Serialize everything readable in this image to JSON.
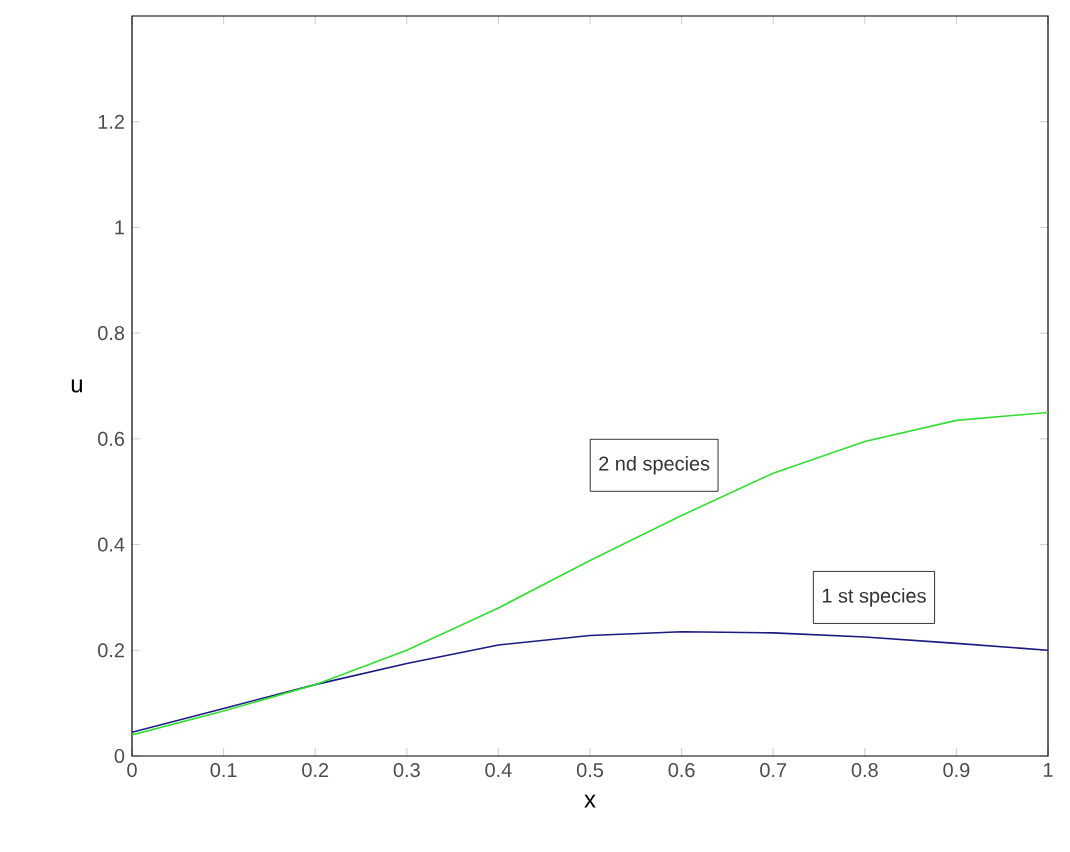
{
  "chart_data": {
    "type": "line",
    "xlabel": "x",
    "ylabel": "u",
    "xlim": [
      0,
      1
    ],
    "ylim": [
      0,
      1.4
    ],
    "xticks": [
      0,
      0.1,
      0.2,
      0.3,
      0.4,
      0.5,
      0.6,
      0.7,
      0.8,
      0.9,
      1
    ],
    "yticks": [
      0,
      0.2,
      0.4,
      0.6,
      0.8,
      1,
      {
        "value": 1.2,
        "label": "1.2"
      }
    ],
    "x": [
      0,
      0.1,
      0.2,
      0.3,
      0.4,
      0.5,
      0.6,
      0.7,
      0.8,
      0.9,
      1
    ],
    "series": [
      {
        "name": "1 st species",
        "color": "#1a1a80",
        "values": [
          0.045,
          0.09,
          0.135,
          0.175,
          0.21,
          0.228,
          0.235,
          0.233,
          0.225,
          0.213,
          0.2
        ]
      },
      {
        "name": "2 nd species",
        "color": "#33dd33",
        "values": [
          0.04,
          0.085,
          0.135,
          0.2,
          0.28,
          0.37,
          0.455,
          0.535,
          0.595,
          0.635,
          0.65
        ]
      }
    ],
    "legend": false,
    "grid": false,
    "marker": "none",
    "line_style": "solid"
  }
}
